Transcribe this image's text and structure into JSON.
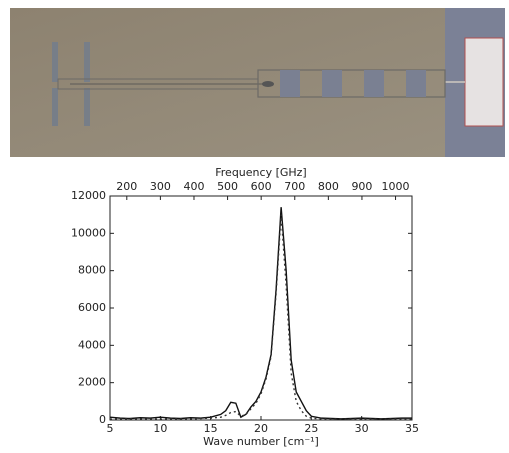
{
  "chart_data": {
    "type": "line",
    "xlabel": "Wave number [cm⁻¹]",
    "x2label": "Frequency [GHz]",
    "x": [
      5,
      6,
      7,
      8,
      9,
      10,
      11,
      12,
      13,
      14,
      15,
      16,
      16.5,
      17,
      17.5,
      18,
      18.5,
      19,
      19.5,
      20,
      20.5,
      21,
      21.5,
      22,
      22.5,
      23,
      23.5,
      24,
      24.5,
      25,
      26,
      27,
      28,
      29,
      30,
      31,
      32,
      33,
      34,
      35
    ],
    "series": [
      {
        "color": "#111111",
        "dash": "none",
        "values": [
          150,
          100,
          80,
          120,
          100,
          150,
          100,
          80,
          120,
          100,
          150,
          300,
          500,
          950,
          900,
          150,
          300,
          700,
          1000,
          1500,
          2300,
          3500,
          7000,
          11400,
          8000,
          3200,
          1500,
          1000,
          500,
          200,
          100,
          80,
          60,
          80,
          100,
          80,
          60,
          80,
          100,
          100
        ]
      },
      {
        "color": "#333333",
        "dash": "2,3",
        "values": [
          50,
          50,
          50,
          50,
          50,
          50,
          50,
          50,
          50,
          80,
          100,
          150,
          250,
          400,
          450,
          200,
          300,
          600,
          900,
          1400,
          2200,
          3400,
          6800,
          11000,
          7200,
          2500,
          1000,
          500,
          200,
          100,
          50,
          50,
          50,
          50,
          50,
          50,
          50,
          50,
          50,
          50
        ]
      }
    ],
    "xlim": [
      5,
      35
    ],
    "xticks": [
      5,
      10,
      15,
      20,
      25,
      30,
      35
    ],
    "x2lim": [
      150,
      1049
    ],
    "x2ticks": [
      200,
      300,
      400,
      500,
      600,
      700,
      800,
      900,
      1000
    ],
    "ylim": [
      0,
      12000
    ],
    "yticks": [
      0,
      2000,
      4000,
      6000,
      8000,
      10000,
      12000
    ]
  }
}
